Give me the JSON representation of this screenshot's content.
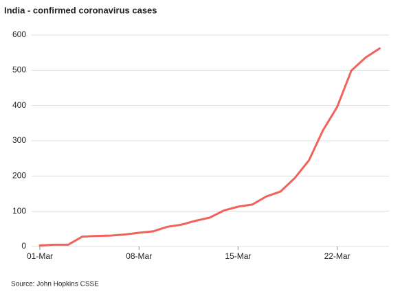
{
  "chart_data": {
    "type": "line",
    "title": "India - confirmed coronavirus cases",
    "source": "Source: John Hopkins CSSE",
    "categories": [
      "01-Mar",
      null,
      null,
      null,
      null,
      null,
      null,
      "08-Mar",
      null,
      null,
      null,
      null,
      null,
      null,
      "15-Mar",
      null,
      null,
      null,
      null,
      null,
      null,
      "22-Mar",
      null,
      null,
      null
    ],
    "series": [
      {
        "name": "confirmed cases",
        "color": "#f0625a",
        "values": [
          3,
          5,
          5,
          28,
          30,
          31,
          34,
          39,
          43,
          56,
          62,
          73,
          82,
          102,
          113,
          119,
          142,
          156,
          194,
          244,
          330,
          396,
          499,
          536,
          562
        ]
      }
    ],
    "ylim": [
      0,
      600
    ],
    "yticks": [
      0,
      100,
      200,
      300,
      400,
      500,
      600
    ],
    "grid": true
  }
}
